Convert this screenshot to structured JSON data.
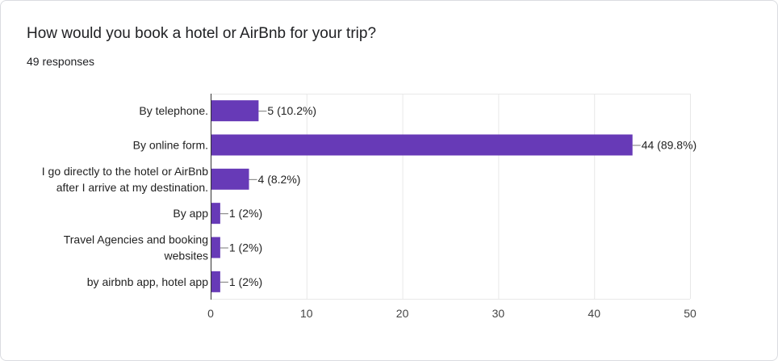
{
  "question": {
    "title": "How would you book a hotel or AirBnb for your trip?",
    "responses": "49 responses"
  },
  "colors": {
    "bar": "#673ab7",
    "grid": "#e8e8e8",
    "axis": "#333333"
  },
  "chart_data": {
    "type": "bar",
    "orientation": "horizontal",
    "title": "How would you book a hotel or AirBnb for your trip?",
    "categories": [
      "By telephone.",
      "By online form.",
      "I go directly to the hotel or AirBnb after I arrive at my destination.",
      "By app",
      "Travel Agencies and booking websites",
      "by airbnb app, hotel app"
    ],
    "category_lines": [
      [
        "By telephone."
      ],
      [
        "By online form."
      ],
      [
        "I go directly to the hotel or AirBnb",
        "after I arrive at my destination."
      ],
      [
        "By app"
      ],
      [
        "Travel Agencies and booking",
        "websites"
      ],
      [
        "by airbnb app, hotel app"
      ]
    ],
    "values": [
      5,
      44,
      4,
      1,
      1,
      1
    ],
    "data_labels": [
      "5 (10.2%)",
      "44 (89.8%)",
      "4 (8.2%)",
      "1 (2%)",
      "1 (2%)",
      "1 (2%)"
    ],
    "xlim": [
      0,
      50
    ],
    "xticks": [
      0,
      10,
      20,
      30,
      40,
      50
    ],
    "xlabel": "",
    "ylabel": "",
    "grid": true
  }
}
